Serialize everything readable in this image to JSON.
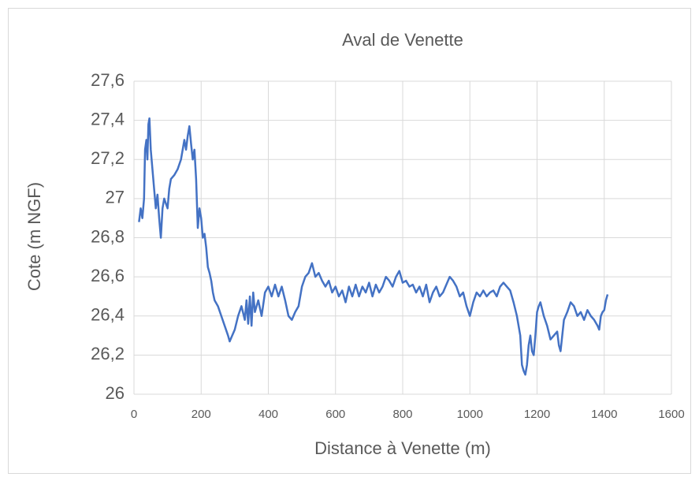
{
  "chart_data": {
    "type": "line",
    "title": "Aval de Venette",
    "x_label": "Distance à Venette (m)",
    "y_label": "Cote (m NGF)",
    "color": "#4472c4",
    "grid": true,
    "xlim": [
      0,
      1600
    ],
    "xticks": [
      0,
      200,
      400,
      600,
      800,
      1000,
      1200,
      1400,
      1600
    ],
    "ylim": [
      26,
      27.6
    ],
    "yticks": [
      26,
      {
        "value": 26.2,
        "label": "26,2"
      },
      {
        "value": 26.4,
        "label": "26,4"
      },
      {
        "value": 26.6,
        "label": "26,6"
      },
      {
        "value": 26.8,
        "label": "26,8"
      },
      27,
      {
        "value": 27.2,
        "label": "27,2"
      },
      {
        "value": 27.4,
        "label": "27,4"
      },
      {
        "value": 27.6,
        "label": "27,6"
      }
    ],
    "x": [
      15,
      20,
      25,
      30,
      33,
      37,
      40,
      43,
      46,
      50,
      55,
      60,
      65,
      70,
      75,
      80,
      85,
      90,
      100,
      105,
      110,
      120,
      130,
      140,
      150,
      155,
      160,
      165,
      170,
      175,
      180,
      185,
      190,
      195,
      200,
      205,
      210,
      215,
      220,
      225,
      230,
      235,
      240,
      250,
      260,
      270,
      280,
      285,
      290,
      300,
      310,
      320,
      330,
      335,
      340,
      345,
      350,
      355,
      360,
      370,
      380,
      390,
      400,
      410,
      420,
      430,
      440,
      450,
      460,
      470,
      480,
      490,
      500,
      510,
      520,
      530,
      540,
      550,
      560,
      570,
      580,
      590,
      600,
      610,
      620,
      630,
      640,
      650,
      660,
      670,
      680,
      690,
      700,
      710,
      720,
      730,
      740,
      750,
      760,
      770,
      780,
      790,
      800,
      810,
      820,
      830,
      840,
      850,
      860,
      870,
      880,
      890,
      900,
      910,
      920,
      930,
      940,
      950,
      960,
      970,
      980,
      990,
      1000,
      1010,
      1020,
      1030,
      1040,
      1050,
      1060,
      1070,
      1080,
      1090,
      1100,
      1110,
      1120,
      1130,
      1140,
      1150,
      1155,
      1160,
      1165,
      1170,
      1175,
      1180,
      1185,
      1190,
      1195,
      1200,
      1205,
      1210,
      1220,
      1230,
      1240,
      1250,
      1260,
      1265,
      1270,
      1275,
      1280,
      1290,
      1300,
      1310,
      1320,
      1330,
      1340,
      1350,
      1360,
      1370,
      1380,
      1385,
      1390,
      1395,
      1400,
      1405,
      1410
    ],
    "values": [
      26.88,
      26.95,
      26.9,
      27.0,
      27.25,
      27.3,
      27.2,
      27.38,
      27.41,
      27.25,
      27.15,
      27.05,
      26.95,
      27.02,
      26.9,
      26.8,
      26.95,
      27.0,
      26.95,
      27.05,
      27.1,
      27.12,
      27.15,
      27.2,
      27.3,
      27.25,
      27.32,
      27.37,
      27.28,
      27.2,
      27.25,
      27.1,
      26.85,
      26.95,
      26.9,
      26.8,
      26.82,
      26.75,
      26.65,
      26.62,
      26.58,
      26.52,
      26.48,
      26.45,
      26.4,
      26.35,
      26.3,
      26.27,
      26.29,
      26.33,
      26.4,
      26.45,
      26.38,
      26.48,
      26.36,
      26.5,
      26.35,
      26.52,
      26.42,
      26.48,
      26.4,
      26.52,
      26.55,
      26.5,
      26.56,
      26.5,
      26.55,
      26.48,
      26.4,
      26.38,
      26.42,
      26.45,
      26.55,
      26.6,
      26.62,
      26.67,
      26.6,
      26.62,
      26.58,
      26.55,
      26.58,
      26.52,
      26.55,
      26.5,
      26.53,
      26.47,
      26.55,
      26.5,
      26.56,
      26.5,
      26.55,
      26.52,
      26.57,
      26.5,
      26.56,
      26.52,
      26.55,
      26.6,
      26.58,
      26.55,
      26.6,
      26.63,
      26.57,
      26.58,
      26.55,
      26.56,
      26.52,
      26.55,
      26.5,
      26.56,
      26.47,
      26.52,
      26.55,
      26.5,
      26.52,
      26.56,
      26.6,
      26.58,
      26.55,
      26.5,
      26.52,
      26.45,
      26.4,
      26.47,
      26.52,
      26.5,
      26.53,
      26.5,
      26.52,
      26.53,
      26.5,
      26.55,
      26.57,
      26.55,
      26.53,
      26.47,
      26.4,
      26.3,
      26.15,
      26.12,
      26.1,
      26.15,
      26.25,
      26.3,
      26.22,
      26.2,
      26.3,
      26.42,
      26.45,
      26.47,
      26.4,
      26.35,
      26.28,
      26.3,
      26.32,
      26.25,
      26.22,
      26.3,
      26.38,
      26.42,
      26.47,
      26.45,
      26.4,
      26.42,
      26.38,
      26.43,
      26.4,
      26.38,
      26.35,
      26.33,
      26.4,
      26.42,
      26.43,
      26.48,
      26.51
    ]
  }
}
